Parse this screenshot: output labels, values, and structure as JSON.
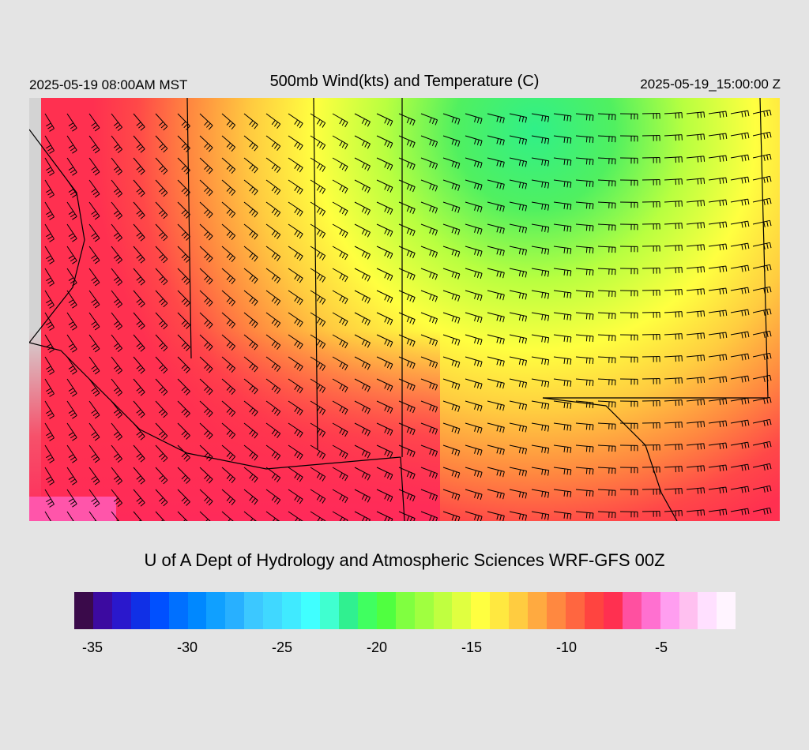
{
  "header": {
    "valid_time": "2025-05-19 08:00AM MST",
    "title": "500mb Wind(kts) and Temperature (C)",
    "init_time": "2025-05-19_15:00:00 Z"
  },
  "credit": "U of A Dept of Hydrology and Atmospheric Sciences WRF-GFS 00Z",
  "colorbar": {
    "colors": [
      "#3a0a4a",
      "#3c0aa0",
      "#2a18cc",
      "#1030e6",
      "#0050ff",
      "#0070ff",
      "#0088ff",
      "#10a0ff",
      "#28b0ff",
      "#3cc8ff",
      "#40d8ff",
      "#40eaff",
      "#40ffff",
      "#40ffd0",
      "#30f090",
      "#40ff60",
      "#50ff40",
      "#80ff40",
      "#a0ff40",
      "#c0ff40",
      "#e0ff40",
      "#ffff40",
      "#ffe840",
      "#ffcc40",
      "#ffaa40",
      "#ff8840",
      "#ff6640",
      "#ff4440",
      "#ff3050",
      "#ff50a0",
      "#ff70d0",
      "#ff9ef0",
      "#ffc0f0",
      "#ffe0ff",
      "#fff4ff"
    ],
    "tick_labels": [
      "-35",
      "-30",
      "-25",
      "-20",
      "-15",
      "-10",
      "-5"
    ]
  },
  "map": {
    "field": "500mb temperature (C) with wind barbs (kts)",
    "warm_color": "#ff3a4a",
    "cold_color": "#38f070"
  }
}
